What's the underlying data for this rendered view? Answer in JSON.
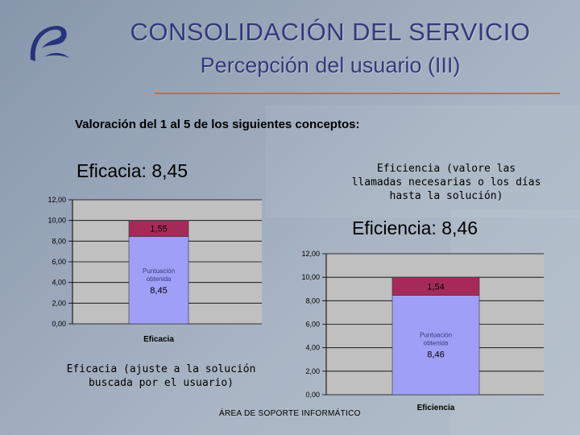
{
  "header": {
    "title": "CONSOLIDACIÓN DEL SERVICIO",
    "subtitle": "Percepción del usuario (III)"
  },
  "intro": "Valoración del 1 al 5 de los siguientes conceptos:",
  "charts": {
    "eficacia": {
      "heading": "Eficacia: 8,45",
      "note": "Eficacia (ajuste a la solución buscada por el usuario)"
    },
    "eficiencia": {
      "heading": "Eficiencia: 8,46",
      "note": "Eficiencia (valore las llamadas necesarias o los días hasta la solución)"
    }
  },
  "footer": "ÁREA DE SOPORTE INFORMÁTICO",
  "colors": {
    "accent_rule": "#e2661c",
    "title": "#343a7c",
    "bar_score": "#9f9ff7",
    "bar_remainder": "#a52a5a",
    "plot_bg": "#c0c0c0"
  },
  "chart_data": [
    {
      "type": "bar",
      "stacked": true,
      "categories": [
        "Eficacia"
      ],
      "ylim": [
        0,
        12
      ],
      "yticks": [
        "0,00",
        "2,00",
        "4,00",
        "6,00",
        "8,00",
        "10,00",
        "12,00"
      ],
      "series": [
        {
          "name": "Puntuación obtenida",
          "values": [
            8.45
          ],
          "label": "8,45",
          "color": "#9f9ff7"
        },
        {
          "values": [
            1.55
          ],
          "label": "1,55",
          "color": "#a52a5a"
        }
      ],
      "grid": true
    },
    {
      "type": "bar",
      "stacked": true,
      "categories": [
        "Eficiencia"
      ],
      "ylim": [
        0,
        12
      ],
      "yticks": [
        "0,00",
        "2,00",
        "4,00",
        "6,00",
        "8,00",
        "10,00",
        "12,00"
      ],
      "series": [
        {
          "name": "Puntuación obtenida",
          "values": [
            8.46
          ],
          "label": "8,46",
          "color": "#9f9ff7"
        },
        {
          "values": [
            1.54
          ],
          "label": "1,54",
          "color": "#a52a5a"
        }
      ],
      "grid": true
    }
  ]
}
